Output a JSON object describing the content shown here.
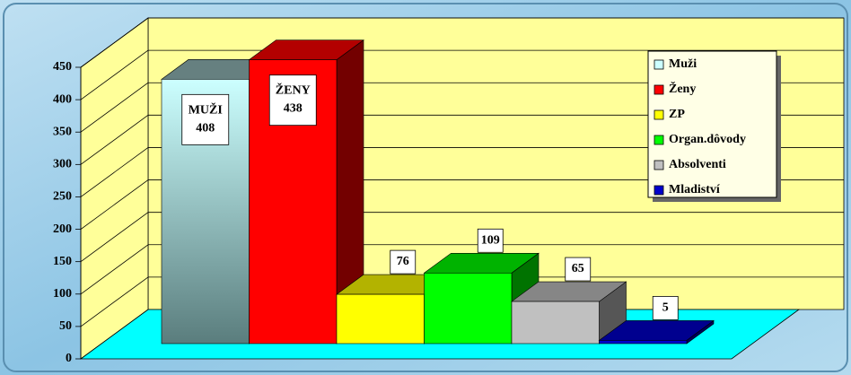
{
  "chart_data": {
    "type": "bar3d",
    "series": [
      {
        "name": "Muži",
        "color": "#ccffff",
        "values": [
          408
        ],
        "value_labels": [
          "MUŽI\n408"
        ]
      },
      {
        "name": "Ženy",
        "color": "#ff0000",
        "values": [
          438
        ],
        "value_labels": [
          "ŽENY\n438"
        ]
      },
      {
        "name": "ZP",
        "color": "#ffff00",
        "values": [
          76
        ],
        "value_labels": [
          "76"
        ]
      },
      {
        "name": "Organ.dôvody",
        "color": "#00ff00",
        "values": [
          109
        ],
        "value_labels": [
          "109"
        ]
      },
      {
        "name": "Absolventi",
        "color": "#c0c0c0",
        "values": [
          65
        ],
        "value_labels": [
          "65"
        ]
      },
      {
        "name": "Mladiství",
        "color": "#0000cc",
        "values": [
          5
        ],
        "value_labels": [
          "5"
        ]
      }
    ],
    "ylim": [
      0,
      450
    ],
    "yticks": [
      0,
      50,
      100,
      150,
      200,
      250,
      300,
      350,
      400,
      450
    ],
    "grid": true,
    "legend": "upper right"
  }
}
